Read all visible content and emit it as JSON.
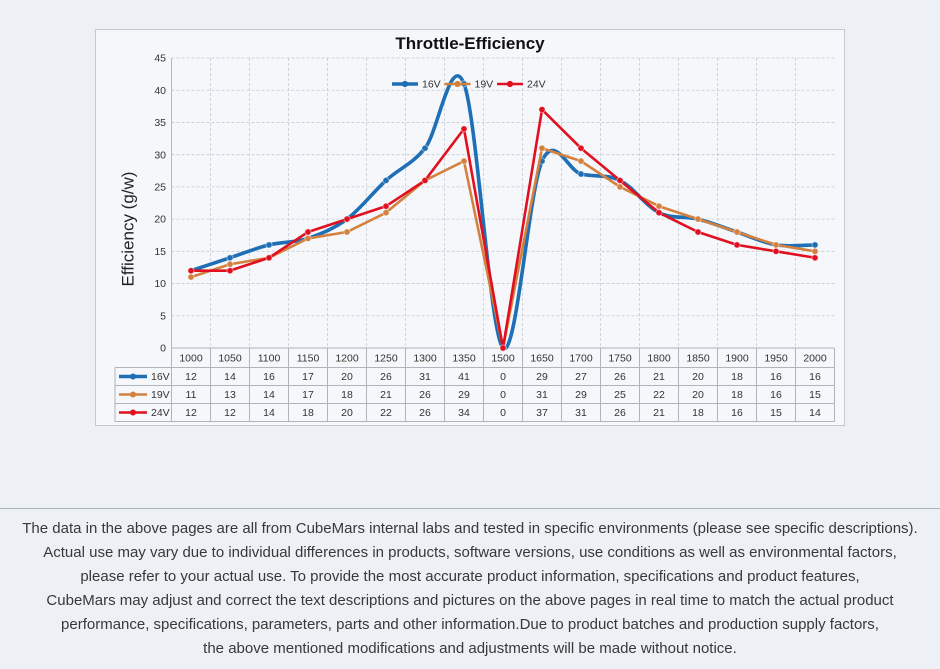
{
  "chart_data": {
    "type": "line",
    "title": "Throttle-Efficiency",
    "ylabel": "Efficiency (g/w)",
    "categories": [
      "1000",
      "1050",
      "1100",
      "1150",
      "1200",
      "1250",
      "1300",
      "1350",
      "1500",
      "1650",
      "1700",
      "1750",
      "1800",
      "1850",
      "1900",
      "1950",
      "2000"
    ],
    "series": [
      {
        "name": "16V",
        "color": "#1e6fb6",
        "smooth": true,
        "values": [
          12,
          14,
          16,
          17,
          20,
          26,
          31,
          41,
          0,
          29,
          27,
          26,
          21,
          20,
          18,
          16,
          16
        ]
      },
      {
        "name": "19V",
        "color": "#d4813f",
        "smooth": false,
        "values": [
          11,
          13,
          14,
          17,
          18,
          21,
          26,
          29,
          0,
          31,
          29,
          25,
          22,
          20,
          18,
          16,
          15
        ]
      },
      {
        "name": "24V",
        "color": "#e01020",
        "smooth": false,
        "values": [
          12,
          12,
          14,
          18,
          20,
          22,
          26,
          34,
          0,
          37,
          31,
          26,
          21,
          18,
          16,
          15,
          14
        ]
      }
    ],
    "ylim": [
      0,
      45
    ],
    "yticks": [
      0,
      5,
      10,
      15,
      20,
      25,
      30,
      35,
      40,
      45
    ],
    "grid": true,
    "markers": true,
    "legend": "top-center",
    "data_table": true
  },
  "disclaimer": {
    "lines": [
      "The data in the above pages are all from CubeMars internal labs and tested in specific environments (please see specific descriptions).",
      "Actual use may vary due to individual differences in products, software versions, use conditions as well as environmental factors,",
      "please refer to your actual use. To provide the most accurate product information, specifications and product features,",
      "CubeMars may adjust and correct the text descriptions and pictures on the above pages in real time to match the actual product",
      "performance, specifications, parameters, parts and other information.Due to product batches and production supply factors,",
      "the above mentioned modifications and adjustments will be made without notice."
    ]
  }
}
